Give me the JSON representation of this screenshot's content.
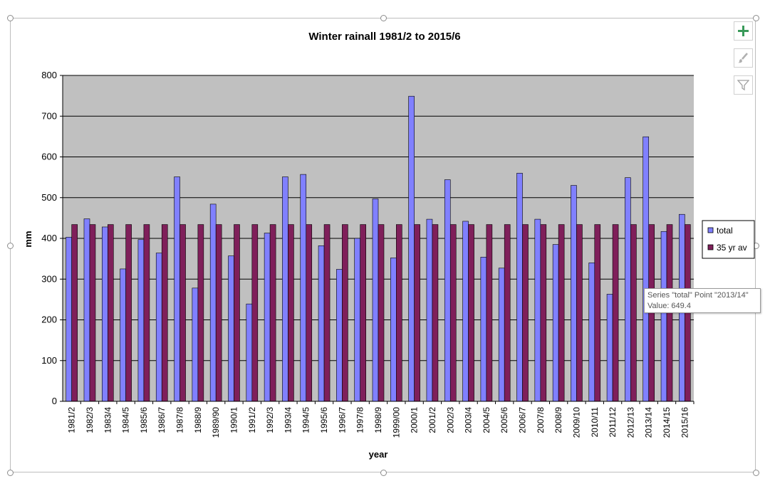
{
  "chart_data": {
    "type": "bar",
    "title": "Winter rainall 1981/2 to 2015/6",
    "xlabel": "year",
    "ylabel": "mm",
    "ylim": [
      0,
      800
    ],
    "yticks": [
      0,
      100,
      200,
      300,
      400,
      500,
      600,
      700,
      800
    ],
    "grid": true,
    "legend_position": "right",
    "categories": [
      "1981/2",
      "1982/3",
      "1983/4",
      "1984/5",
      "1985/6",
      "1986/7",
      "1987/8",
      "1988/9",
      "1989/90",
      "1990/1",
      "1991/2",
      "1992/3",
      "1993/4",
      "1994/5",
      "1995/6",
      "1996/7",
      "1997/8",
      "1998/9",
      "1999/00",
      "2000/1",
      "2001/2",
      "2002/3",
      "2003/4",
      "2004/5",
      "2005/6",
      "2006/7",
      "2007/8",
      "2008/9",
      "2009/10",
      "2010/11",
      "2011/12",
      "2012/13",
      "2013/14",
      "2014/15",
      "2015/16"
    ],
    "series": [
      {
        "name": "total",
        "color": "#8080ff",
        "values": [
          403,
          448,
          428,
          325,
          397,
          364,
          551,
          278,
          484,
          357,
          239,
          413,
          551,
          557,
          382,
          324,
          400,
          497,
          352,
          749,
          447,
          544,
          442,
          354,
          327,
          560,
          447,
          385,
          530,
          340,
          263,
          549,
          649.4,
          417,
          459
        ]
      },
      {
        "name": "35 yr av",
        "color": "#7f1f5a",
        "values": [
          434,
          434,
          434,
          434,
          434,
          434,
          434,
          434,
          434,
          434,
          434,
          434,
          434,
          434,
          434,
          434,
          434,
          434,
          434,
          434,
          434,
          434,
          434,
          434,
          434,
          434,
          434,
          434,
          434,
          434,
          434,
          434,
          434,
          434,
          434
        ]
      }
    ],
    "plot_background": "#c0c0c0"
  },
  "tooltip": {
    "line1": "Series \"total\" Point \"2013/14\"",
    "line2": "Value: 649.4"
  },
  "toolbar": {
    "add_icon": "plus-icon",
    "style_icon": "brush-icon",
    "filter_icon": "filter-icon"
  }
}
